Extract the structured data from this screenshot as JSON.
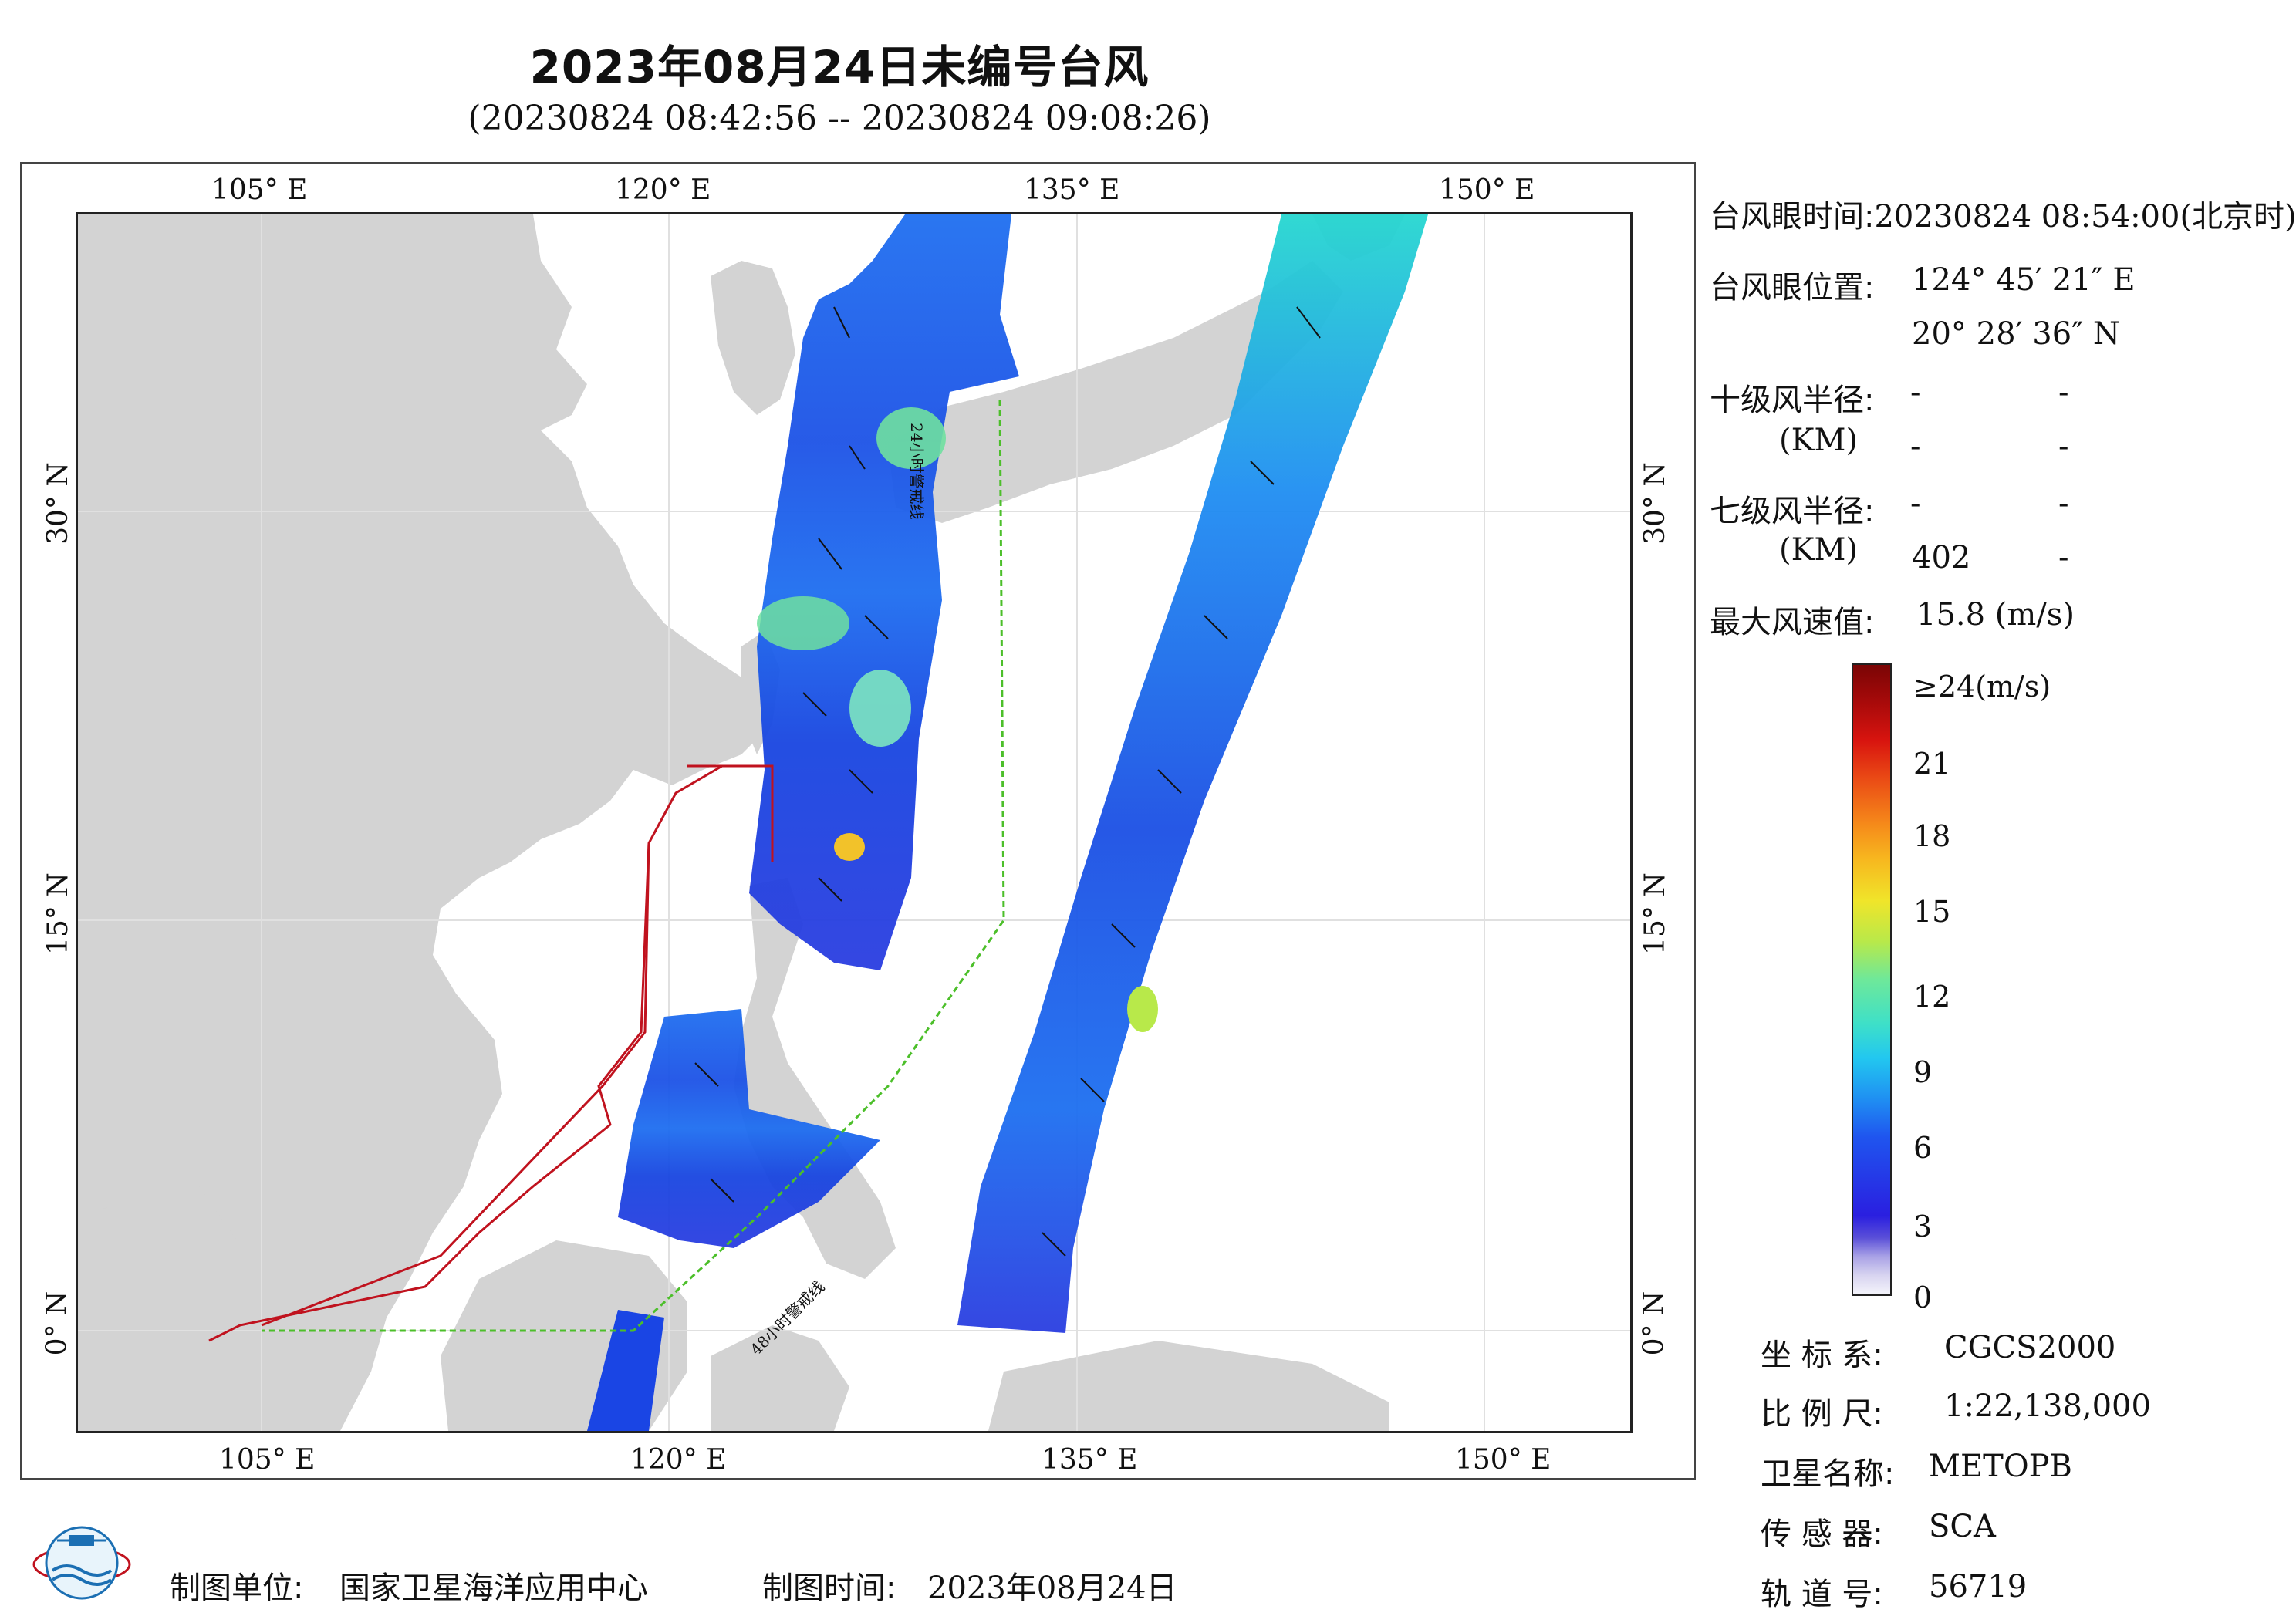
{
  "title": "2023年08月24日未编号台风",
  "subtitle": "(20230824 08:42:56 -- 20230824 09:08:26)",
  "map": {
    "lon_labels_top": [
      "105° E",
      "120° E",
      "135° E",
      "150° E"
    ],
    "lon_labels_bottom": [
      "105° E",
      "120° E",
      "135° E",
      "150° E"
    ],
    "lat_labels_left": [
      "30° N",
      "15° N",
      "0° N"
    ],
    "lat_labels_right": [
      "30° N",
      "15° N",
      "0° N"
    ],
    "warning_line_24h": "24小时警戒线",
    "warning_line_48h": "48小时警戒线",
    "colors": {
      "land": "#d3d3d3",
      "ocean": "#ffffff",
      "grid": "#e6e6e6",
      "red_track": "#c0121e",
      "green_line": "#4cbf2a"
    }
  },
  "info": {
    "eye_time_label": "台风眼时间:",
    "eye_time_value": "20230824 08:54:00(北京时)",
    "eye_pos_label": "台风眼位置:",
    "eye_lon": "124° 45′ 21″ E",
    "eye_lat": "20° 28′ 36″ N",
    "r10_label": "十级风半径:",
    "r10_unit": "(KM)",
    "r10_vals": [
      "-",
      "-",
      "-",
      "-"
    ],
    "r7_label": "七级风半径:",
    "r7_unit": "(KM)",
    "r7_vals": [
      "-",
      "-",
      "402",
      "-"
    ],
    "max_wind_label": "最大风速值:",
    "max_wind_value": "15.8  (m/s)"
  },
  "colorbar": {
    "labels": [
      "≥24(m/s)",
      "21",
      "18",
      "15",
      "12",
      "9",
      "6",
      "3",
      "0"
    ]
  },
  "meta": {
    "crs_label": "坐 标 系:",
    "crs_value": "CGCS2000",
    "scale_label": "比 例 尺:",
    "scale_value": "1:22,138,000",
    "sat_label": "卫星名称:",
    "sat_value": "METOPB",
    "sensor_label": "传 感 器:",
    "sensor_value": "SCA",
    "orbit_label": "轨 道 号:",
    "orbit_value": "56719"
  },
  "footer": {
    "org_label": "制图单位:",
    "org_value": "国家卫星海洋应用中心",
    "date_label": "制图时间:",
    "date_value": "2023年08月24日"
  }
}
